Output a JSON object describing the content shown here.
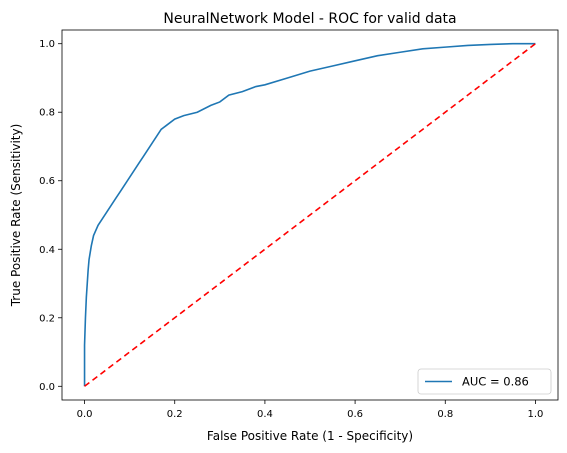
{
  "chart_data": {
    "type": "line",
    "title": "NeuralNetwork Model - ROC for valid data",
    "xlabel": "False Positive Rate (1 - Specificity)",
    "ylabel": "True Positive Rate (Sensitivity)",
    "xlim": [
      -0.05,
      1.05
    ],
    "ylim": [
      -0.04,
      1.04
    ],
    "x_ticks": [
      0.0,
      0.2,
      0.4,
      0.6,
      0.8,
      1.0
    ],
    "y_ticks": [
      0.0,
      0.2,
      0.4,
      0.6,
      0.8,
      1.0
    ],
    "x_tick_labels": [
      "0.0",
      "0.2",
      "0.4",
      "0.6",
      "0.8",
      "1.0"
    ],
    "y_tick_labels": [
      "0.0",
      "0.2",
      "0.4",
      "0.6",
      "0.8",
      "1.0"
    ],
    "grid": false,
    "legend_position": "lower-right",
    "series": [
      {
        "name": "AUC = 0.86",
        "color": "#1f77b4",
        "style": "solid",
        "x": [
          0.0,
          0.0,
          0.002,
          0.004,
          0.006,
          0.008,
          0.01,
          0.015,
          0.02,
          0.03,
          0.04,
          0.05,
          0.06,
          0.07,
          0.08,
          0.09,
          0.1,
          0.11,
          0.12,
          0.13,
          0.14,
          0.15,
          0.16,
          0.17,
          0.18,
          0.2,
          0.22,
          0.25,
          0.28,
          0.3,
          0.32,
          0.35,
          0.38,
          0.4,
          0.45,
          0.5,
          0.55,
          0.6,
          0.65,
          0.7,
          0.75,
          0.8,
          0.85,
          0.9,
          0.95,
          1.0
        ],
        "y": [
          0.0,
          0.12,
          0.2,
          0.26,
          0.3,
          0.34,
          0.37,
          0.41,
          0.44,
          0.47,
          0.49,
          0.51,
          0.53,
          0.55,
          0.57,
          0.59,
          0.61,
          0.63,
          0.65,
          0.67,
          0.69,
          0.71,
          0.73,
          0.75,
          0.76,
          0.78,
          0.79,
          0.8,
          0.82,
          0.83,
          0.85,
          0.86,
          0.875,
          0.88,
          0.9,
          0.92,
          0.935,
          0.95,
          0.965,
          0.975,
          0.985,
          0.99,
          0.995,
          0.998,
          1.0,
          1.0
        ]
      },
      {
        "name": "",
        "color": "#ff0000",
        "style": "dashed",
        "x": [
          0.0,
          1.0
        ],
        "y": [
          0.0,
          1.0
        ]
      }
    ]
  }
}
